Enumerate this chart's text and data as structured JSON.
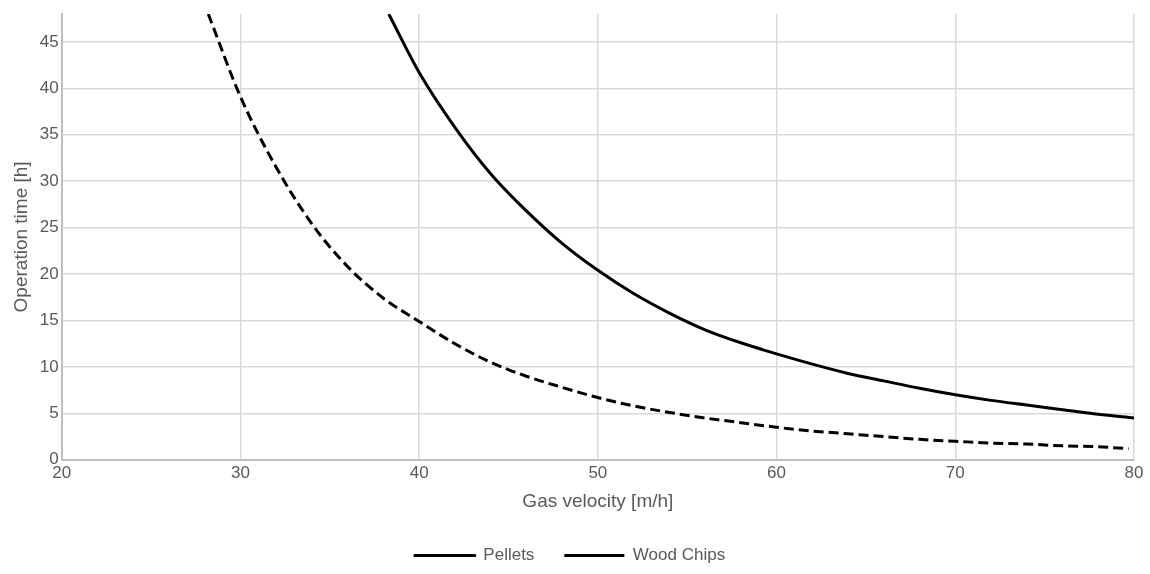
{
  "chart_data": {
    "type": "line",
    "xlabel": "Gas velocity [m/h]",
    "ylabel": "Operation time [h]",
    "xlim": [
      20,
      80
    ],
    "xticks": [
      20,
      30,
      40,
      50,
      60,
      70,
      80
    ],
    "ylim": [
      0,
      48
    ],
    "yticks": [
      0,
      5,
      10,
      15,
      20,
      25,
      30,
      35,
      40,
      45
    ],
    "grid": true,
    "legend": "bottom",
    "marker": "none",
    "series": [
      {
        "name": "Pellets",
        "color": "#000000",
        "line_style": "solid",
        "x": [
          38.3,
          40,
          42,
          44,
          46,
          48,
          50,
          52,
          54,
          56,
          58,
          60,
          62,
          64,
          66,
          68,
          70,
          72,
          74,
          76,
          78,
          80
        ],
        "values": [
          48,
          41.7,
          35.8,
          30.8,
          26.8,
          23.3,
          20.4,
          17.9,
          15.8,
          14.0,
          12.6,
          11.4,
          10.3,
          9.3,
          8.5,
          7.7,
          7.0,
          6.4,
          5.9,
          5.4,
          4.9,
          4.5
        ]
      },
      {
        "name": "Wood Chips",
        "color": "#000000",
        "line_style": "dashed",
        "x": [
          28.2,
          30,
          32,
          34,
          36,
          38,
          40,
          42,
          44,
          46,
          48,
          50,
          52,
          54,
          56,
          58,
          60,
          62,
          64,
          66,
          68,
          70,
          72,
          74,
          76,
          78,
          79.7
        ],
        "values": [
          48,
          39.1,
          31.5,
          25.4,
          20.8,
          17.4,
          14.9,
          12.5,
          10.5,
          9.0,
          7.8,
          6.7,
          5.8,
          5.1,
          4.5,
          4.0,
          3.5,
          3.1,
          2.8,
          2.5,
          2.2,
          2.0,
          1.8,
          1.7,
          1.5,
          1.4,
          1.2
        ]
      }
    ]
  }
}
